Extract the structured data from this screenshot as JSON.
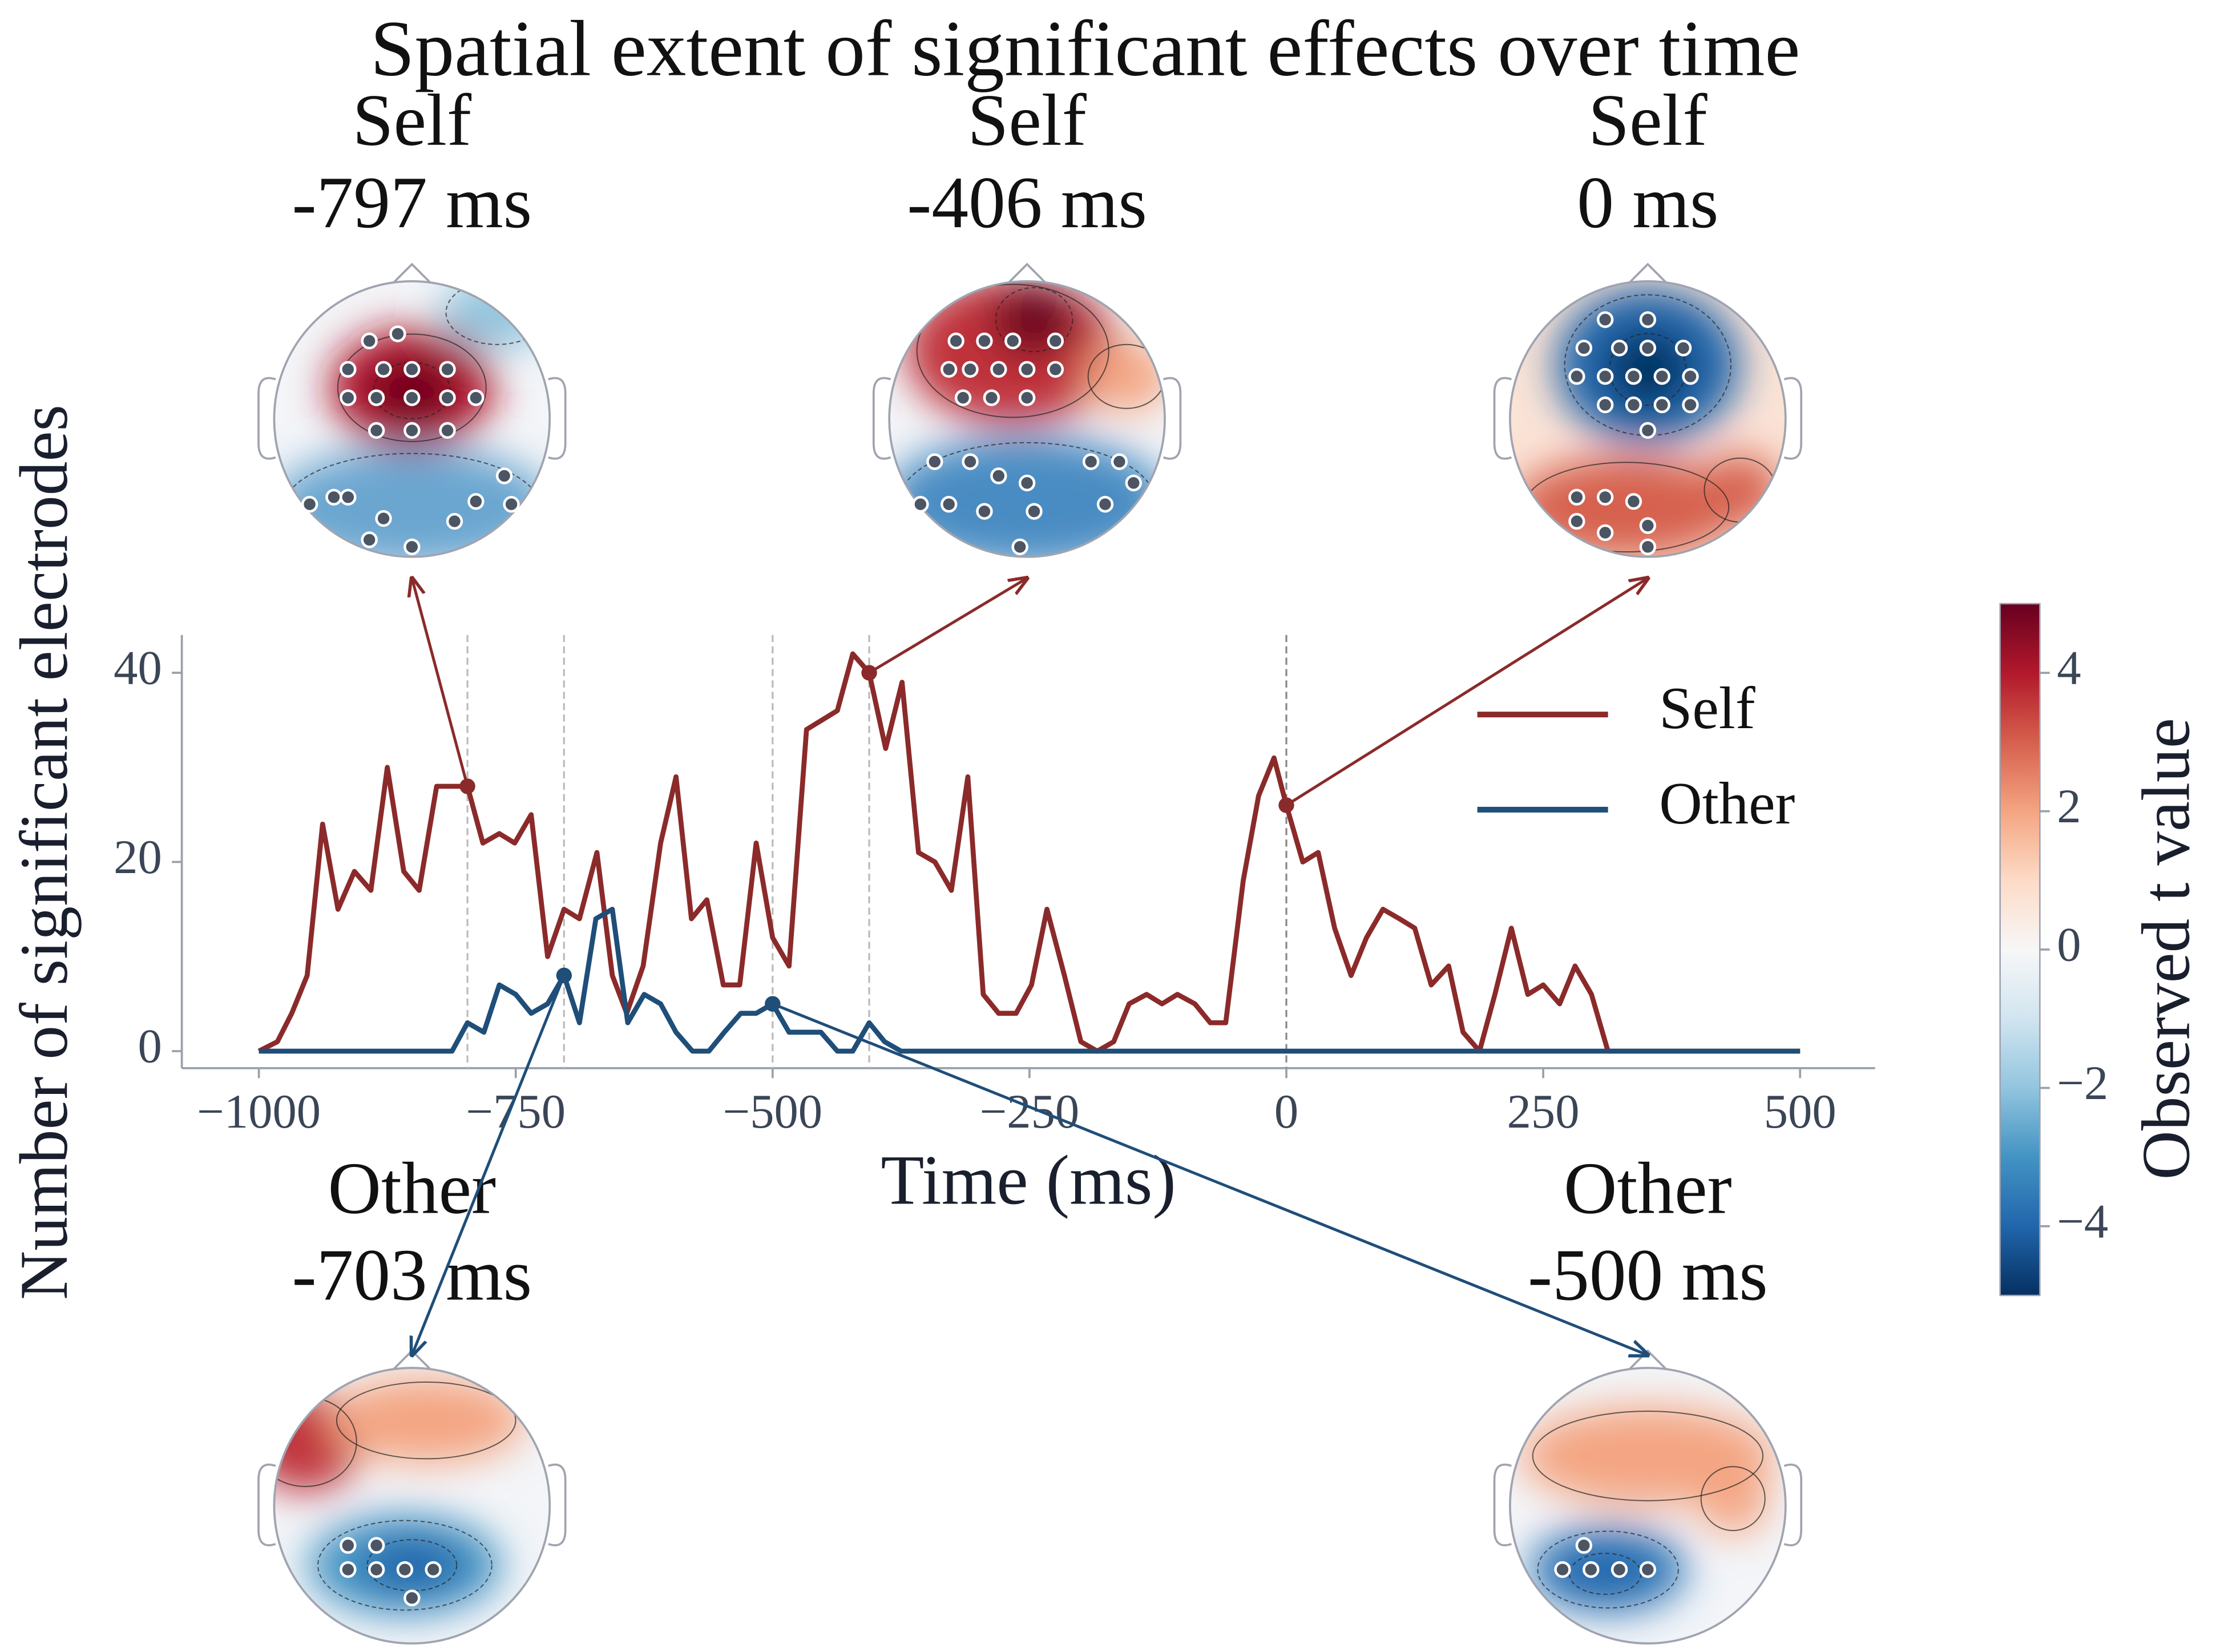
{
  "chart_data": {
    "type": "line",
    "title": "Spatial extent of significant effects over time",
    "x_label": "Time (ms)",
    "y_label": "Number of significant electrodes",
    "xlim": [
      -1075,
      573
    ],
    "ylim": [
      -1.8,
      44
    ],
    "xticks": [
      {
        "value": -1000,
        "label": "−1000"
      },
      {
        "value": -750,
        "label": "−750"
      },
      {
        "value": -500,
        "label": "−500"
      },
      {
        "value": -250,
        "label": "−250"
      },
      0,
      250,
      500
    ],
    "yticks": [
      0,
      20,
      40
    ],
    "legend_position": "upper right",
    "series": [
      {
        "name": "Self",
        "color": "#8b2a2a",
        "x": [
          -1000,
          -982,
          -968,
          -953,
          -938,
          -923,
          -907,
          -891,
          -875,
          -859,
          -844,
          -827,
          -812,
          -797,
          -782,
          -766,
          -751,
          -735,
          -719,
          -703,
          -688,
          -671,
          -656,
          -642,
          -626,
          -609,
          -594,
          -579,
          -564,
          -548,
          -532,
          -516,
          -500,
          -484,
          -467,
          -452,
          -437,
          -422,
          -406,
          -390,
          -374,
          -358,
          -342,
          -326,
          -310,
          -295,
          -280,
          -263,
          -248,
          -233,
          -216,
          -200,
          -184,
          -168,
          -153,
          -136,
          -121,
          -106,
          -89,
          -74,
          -59,
          -42,
          -27,
          -12,
          0,
          16,
          31,
          47,
          63,
          78,
          94,
          110,
          125,
          141,
          158,
          172,
          188,
          203,
          219,
          235,
          250,
          266,
          281,
          297,
          313,
          500
        ],
        "values": [
          0,
          1,
          4,
          8,
          24,
          15,
          19,
          17,
          30,
          19,
          17,
          28,
          28,
          28,
          22,
          23,
          22,
          25,
          10,
          15,
          14,
          21,
          8,
          4,
          9,
          22,
          29,
          14,
          16,
          7,
          7,
          22,
          12,
          9,
          34,
          35,
          36,
          42,
          40,
          32,
          39,
          21,
          20,
          17,
          29,
          6,
          4,
          4,
          7,
          15,
          8,
          1,
          0,
          1,
          5,
          6,
          5,
          6,
          5,
          3,
          3,
          18,
          27,
          31,
          26,
          20,
          21,
          13,
          8,
          12,
          15,
          14,
          13,
          7,
          9,
          2,
          0,
          6,
          13,
          6,
          7,
          5,
          9,
          6,
          0,
          0
        ],
        "highlights": [
          -797,
          -406,
          0
        ],
        "topomap_titles": [
          [
            "Self",
            "-797 ms"
          ],
          [
            "Self",
            "-406 ms"
          ],
          [
            "Self",
            "0 ms"
          ]
        ]
      },
      {
        "name": "Other",
        "color": "#1f4e79",
        "x": [
          -1000,
          -812,
          -797,
          -781,
          -766,
          -750,
          -735,
          -719,
          -703,
          -688,
          -672,
          -656,
          -641,
          -625,
          -609,
          -594,
          -578,
          -562,
          -547,
          -531,
          -516,
          -500,
          -484,
          -469,
          -453,
          -437,
          -422,
          -406,
          -391,
          -375,
          500
        ],
        "values": [
          0,
          0,
          3,
          2,
          7,
          6,
          4,
          5,
          8,
          3,
          14,
          15,
          3,
          6,
          5,
          2,
          0,
          0,
          2,
          4,
          4,
          5,
          2,
          2,
          2,
          0,
          0,
          3,
          1,
          0,
          0
        ],
        "highlights": [
          -703,
          -500
        ],
        "topomap_titles": [
          [
            "Other",
            "-703 ms"
          ],
          [
            "Other",
            "-500 ms"
          ]
        ]
      }
    ],
    "colorbar": {
      "label": "Observed t value",
      "lim": [
        -5,
        5
      ],
      "ticks": [
        {
          "value": -4,
          "label": "−4"
        },
        {
          "value": -2,
          "label": "−2"
        },
        0,
        2,
        4
      ],
      "colors": [
        "#053061",
        "#2166ac",
        "#4393c3",
        "#92c5de",
        "#d1e5f0",
        "#f7f7f7",
        "#fddbc7",
        "#f4a582",
        "#d6604d",
        "#b2182b",
        "#67001f"
      ]
    }
  }
}
